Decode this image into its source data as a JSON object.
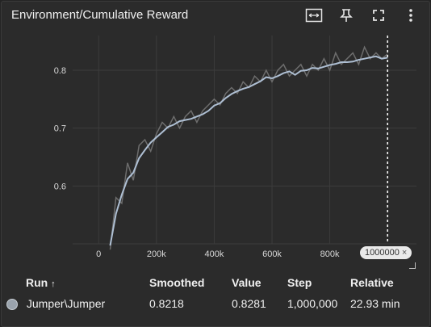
{
  "card": {
    "title": "Environment/Cumulative Reward",
    "tools": [
      {
        "icon": "fit-domain-icon"
      },
      {
        "icon": "pin-icon"
      },
      {
        "icon": "fullscreen-icon"
      },
      {
        "icon": "more-vert-icon"
      }
    ],
    "cursor_step_badge": "1000000",
    "cursor_step_badge_close": "×"
  },
  "chart_data": {
    "type": "line",
    "title": "Environment/Cumulative Reward",
    "xlim": [
      -90000,
      1100000
    ],
    "ylim": [
      0.5,
      0.86
    ],
    "x_ticks": [
      0,
      200000,
      400000,
      600000,
      800000
    ],
    "x_tick_labels": [
      "0",
      "200k",
      "400k",
      "600k",
      "800k"
    ],
    "y_ticks": [
      0.6,
      0.7,
      0.8
    ],
    "y_tick_labels": [
      "0.6",
      "0.7",
      "0.8"
    ],
    "grid": true,
    "colors": {
      "smoothed": "#aebfd3",
      "raw": "#6d6d6d",
      "cursor": "#ffffff",
      "grid": "#3c3c3c"
    },
    "cursor_x": 1000000,
    "series": [
      {
        "name": "Jumper\\Jumper",
        "x": [
          40000,
          60000,
          80000,
          100000,
          120000,
          140000,
          160000,
          180000,
          200000,
          220000,
          240000,
          260000,
          280000,
          300000,
          320000,
          340000,
          360000,
          380000,
          400000,
          420000,
          440000,
          460000,
          480000,
          500000,
          520000,
          540000,
          560000,
          580000,
          600000,
          620000,
          640000,
          660000,
          680000,
          700000,
          720000,
          740000,
          760000,
          780000,
          800000,
          820000,
          840000,
          860000,
          880000,
          900000,
          920000,
          940000,
          960000,
          980000,
          1000000
        ],
        "smoothed": [
          0.497,
          0.552,
          0.585,
          0.612,
          0.623,
          0.648,
          0.662,
          0.675,
          0.684,
          0.693,
          0.702,
          0.706,
          0.712,
          0.714,
          0.716,
          0.72,
          0.724,
          0.73,
          0.739,
          0.743,
          0.752,
          0.759,
          0.764,
          0.768,
          0.771,
          0.776,
          0.781,
          0.788,
          0.786,
          0.79,
          0.795,
          0.798,
          0.792,
          0.799,
          0.8,
          0.804,
          0.803,
          0.806,
          0.809,
          0.811,
          0.814,
          0.814,
          0.815,
          0.818,
          0.82,
          0.822,
          0.824,
          0.82,
          0.8218
        ],
        "raw": [
          0.49,
          0.58,
          0.57,
          0.64,
          0.61,
          0.67,
          0.68,
          0.66,
          0.69,
          0.71,
          0.7,
          0.72,
          0.7,
          0.72,
          0.73,
          0.71,
          0.73,
          0.74,
          0.75,
          0.74,
          0.76,
          0.77,
          0.76,
          0.78,
          0.77,
          0.79,
          0.78,
          0.8,
          0.78,
          0.8,
          0.81,
          0.79,
          0.8,
          0.81,
          0.79,
          0.81,
          0.8,
          0.82,
          0.8,
          0.83,
          0.81,
          0.82,
          0.83,
          0.81,
          0.84,
          0.82,
          0.83,
          0.82,
          0.8281
        ]
      }
    ]
  },
  "legend": {
    "headers": {
      "run": "Run",
      "run_sort": "↑",
      "smoothed": "Smoothed",
      "value": "Value",
      "step": "Step",
      "relative": "Relative"
    },
    "row": {
      "run": "Jumper\\Jumper",
      "smoothed": "0.8218",
      "value": "0.8281",
      "step": "1,000,000",
      "relative": "22.93 min",
      "color": "#9aa3ad"
    }
  }
}
